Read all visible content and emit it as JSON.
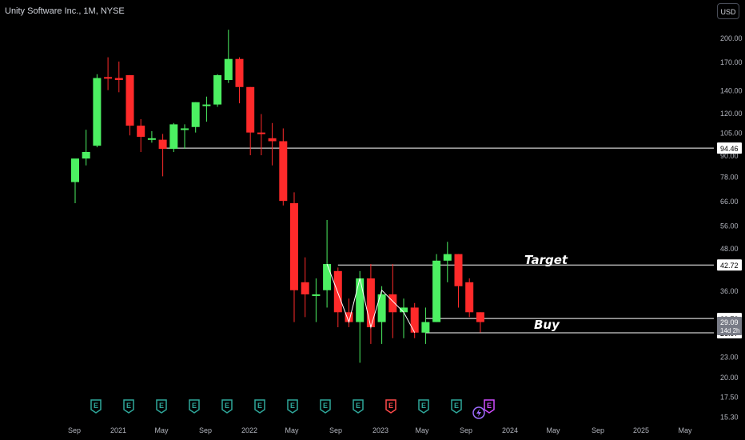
{
  "header": {
    "symbol_title": "Unity Software Inc., 1M, NYSE",
    "currency": "USD"
  },
  "colors": {
    "up": "#4cf062",
    "down": "#ff2a2a",
    "line": "#ffffff",
    "background": "#000000"
  },
  "chart_data": {
    "type": "candlestick",
    "scale": "log",
    "ylim": [
      15.3,
      225
    ],
    "y_ticks": [
      "200.00",
      "170.00",
      "140.00",
      "120.00",
      "105.00",
      "90.00",
      "78.00",
      "66.00",
      "56.00",
      "48.00",
      "36.00",
      "29.72",
      "23.00",
      "20.00",
      "17.50",
      "15.30"
    ],
    "x_ticks": [
      "Sep",
      "2021",
      "May",
      "Sep",
      "2022",
      "May",
      "Sep",
      "2023",
      "May",
      "Sep",
      "2024",
      "May",
      "Sep",
      "2025",
      "May"
    ],
    "price_labels": [
      "94.46",
      "42.72",
      "29.72",
      "29.09",
      "14d 2h",
      "26.97"
    ],
    "horizontal_lines": [
      {
        "price": 94.46,
        "label": "94.46"
      },
      {
        "price": 42.72,
        "label": "42.72"
      },
      {
        "price": 29.72,
        "label": "29.72"
      },
      {
        "price": 26.97,
        "label": "26.97"
      }
    ],
    "annotations": [
      {
        "text": "Target",
        "price": 42.72
      },
      {
        "text": "Buy",
        "price": 29.72
      }
    ],
    "event_badges": [
      "E",
      "E",
      "E",
      "E",
      "E",
      "E",
      "E",
      "E",
      "E",
      "E",
      "E",
      "E",
      "E"
    ],
    "current_price": {
      "value": "29.09",
      "countdown": "14d 2h"
    },
    "candles": [
      {
        "t": "2020-09",
        "o": 75,
        "h": 87,
        "l": 65,
        "c": 88
      },
      {
        "t": "2020-10",
        "o": 88,
        "h": 107,
        "l": 84,
        "c": 92
      },
      {
        "t": "2020-11",
        "o": 96,
        "h": 156,
        "l": 95,
        "c": 152
      },
      {
        "t": "2020-12",
        "o": 153,
        "h": 175,
        "l": 140,
        "c": 152
      },
      {
        "t": "2021-01",
        "o": 152,
        "h": 170,
        "l": 138,
        "c": 150
      },
      {
        "t": "2021-02",
        "o": 155,
        "h": 155,
        "l": 103,
        "c": 110
      },
      {
        "t": "2021-03",
        "o": 110,
        "h": 115,
        "l": 92,
        "c": 102
      },
      {
        "t": "2021-04",
        "o": 101,
        "h": 106,
        "l": 98,
        "c": 101
      },
      {
        "t": "2021-05",
        "o": 100,
        "h": 104,
        "l": 78,
        "c": 94
      },
      {
        "t": "2021-06",
        "o": 94,
        "h": 112,
        "l": 92,
        "c": 111
      },
      {
        "t": "2021-07",
        "o": 107,
        "h": 111,
        "l": 94,
        "c": 108
      },
      {
        "t": "2021-08",
        "o": 109,
        "h": 129,
        "l": 105,
        "c": 129
      },
      {
        "t": "2021-09",
        "o": 127,
        "h": 134,
        "l": 113,
        "c": 127
      },
      {
        "t": "2021-10",
        "o": 127,
        "h": 156,
        "l": 125,
        "c": 155
      },
      {
        "t": "2021-11",
        "o": 150,
        "h": 211,
        "l": 147,
        "c": 173
      },
      {
        "t": "2021-12",
        "o": 173,
        "h": 175,
        "l": 128,
        "c": 143
      },
      {
        "t": "2022-01",
        "o": 143,
        "h": 143,
        "l": 90,
        "c": 105
      },
      {
        "t": "2022-02",
        "o": 105,
        "h": 119,
        "l": 90,
        "c": 104
      },
      {
        "t": "2022-03",
        "o": 101,
        "h": 112,
        "l": 84,
        "c": 99
      },
      {
        "t": "2022-04",
        "o": 99,
        "h": 108,
        "l": 64,
        "c": 66
      },
      {
        "t": "2022-05",
        "o": 65,
        "h": 70,
        "l": 29,
        "c": 36
      },
      {
        "t": "2022-06",
        "o": 38,
        "h": 45,
        "l": 30,
        "c": 35
      },
      {
        "t": "2022-07",
        "o": 35,
        "h": 39,
        "l": 29,
        "c": 35
      },
      {
        "t": "2022-08",
        "o": 36,
        "h": 58,
        "l": 32,
        "c": 43
      },
      {
        "t": "2022-09",
        "o": 41,
        "h": 42,
        "l": 28,
        "c": 31
      },
      {
        "t": "2022-10",
        "o": 31,
        "h": 34,
        "l": 28,
        "c": 29
      },
      {
        "t": "2022-11",
        "o": 29,
        "h": 41,
        "l": 22,
        "c": 39
      },
      {
        "t": "2022-12",
        "o": 39,
        "h": 43,
        "l": 25,
        "c": 28
      },
      {
        "t": "2023-01",
        "o": 29,
        "h": 37,
        "l": 25,
        "c": 35
      },
      {
        "t": "2023-02",
        "o": 35,
        "h": 43,
        "l": 26,
        "c": 31
      },
      {
        "t": "2023-03",
        "o": 31,
        "h": 34,
        "l": 26,
        "c": 32
      },
      {
        "t": "2023-04",
        "o": 32,
        "h": 33,
        "l": 26,
        "c": 27
      },
      {
        "t": "2023-05",
        "o": 27,
        "h": 32,
        "l": 25,
        "c": 29
      },
      {
        "t": "2023-06",
        "o": 29,
        "h": 46,
        "l": 29,
        "c": 44
      },
      {
        "t": "2023-07",
        "o": 44,
        "h": 50,
        "l": 38,
        "c": 46
      },
      {
        "t": "2023-08",
        "o": 46,
        "h": 46,
        "l": 32,
        "c": 37
      },
      {
        "t": "2023-09",
        "o": 38,
        "h": 39,
        "l": 30,
        "c": 31
      },
      {
        "t": "2023-10",
        "o": 31,
        "h": 31,
        "l": 27,
        "c": 29
      }
    ],
    "swing_path_prices": [
      43,
      29,
      39,
      28,
      36,
      31,
      27
    ]
  }
}
